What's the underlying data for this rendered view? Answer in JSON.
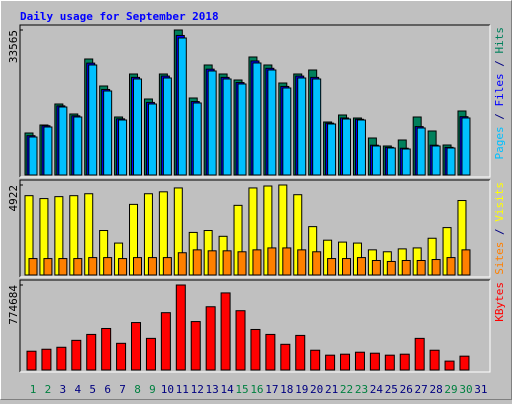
{
  "chart_data": {
    "type": "bar",
    "title": "Daily usage for September 2018",
    "categories": [
      "1",
      "2",
      "3",
      "4",
      "5",
      "6",
      "7",
      "8",
      "9",
      "10",
      "11",
      "12",
      "13",
      "14",
      "15",
      "16",
      "17",
      "18",
      "19",
      "20",
      "21",
      "22",
      "23",
      "24",
      "25",
      "26",
      "27",
      "28",
      "29",
      "30",
      "31"
    ],
    "category_colors": [
      "#008040",
      "#008040",
      "#000080",
      "#000080",
      "#000080",
      "#000080",
      "#000080",
      "#008040",
      "#008040",
      "#000080",
      "#000080",
      "#000080",
      "#000080",
      "#000080",
      "#008040",
      "#008040",
      "#000080",
      "#000080",
      "#000080",
      "#000080",
      "#000080",
      "#008040",
      "#008040",
      "#000080",
      "#000080",
      "#000080",
      "#000080",
      "#000080",
      "#008040",
      "#008040",
      "#000080"
    ],
    "legend_separator": " / ",
    "panels": [
      {
        "ylim": [
          0,
          33565
        ],
        "yticks": [
          33565
        ],
        "series": [
          {
            "name": "Pages",
            "color": "#00c0ff",
            "values": [
              8797,
              11112,
              15742,
              13427,
              25465,
              19446,
              12733,
              22224,
              16437,
              22456,
              31716,
              16668,
              24076,
              22224,
              21067,
              25928,
              24308,
              20141,
              22456,
              22224,
              11807,
              12964,
              12733,
              6714,
              6251,
              6019,
              10881,
              6714,
              6251,
              13196,
              null
            ]
          },
          {
            "name": "Files",
            "color": "#0000ff",
            "values": [
              9100,
              11400,
              16000,
              13700,
              25900,
              19800,
              13000,
              22600,
              16800,
              22900,
              32300,
              17000,
              24500,
              22600,
              21400,
              26400,
              24700,
              20500,
              22900,
              22600,
              12000,
              13200,
              12900,
              6900,
              6400,
              6200,
              11200,
              6900,
              6400,
              13500,
              null
            ]
          },
          {
            "name": "Hits",
            "color": "#00805c",
            "values": [
              9723,
              11575,
              16437,
              14122,
              26854,
              20604,
              13427,
              23382,
              17594,
              23382,
              33565,
              17826,
              25465,
              23382,
              21993,
              27317,
              25465,
              21298,
              23382,
              24308,
              12270,
              13890,
              13196,
              8566,
              6714,
              8103,
              13427,
              10186,
              6945,
              14816,
              null
            ]
          }
        ]
      },
      {
        "ylim": [
          0,
          4922
        ],
        "yticks": [
          4922
        ],
        "series": [
          {
            "name": "Sites",
            "color": "#ff8000",
            "values": [
              899,
              899,
              899,
              899,
              952,
              952,
              899,
              952,
              952,
              952,
              1217,
              1375,
              1323,
              1323,
              1270,
              1375,
              1481,
              1481,
              1375,
              1270,
              899,
              899,
              952,
              793,
              740,
              793,
              793,
              846,
              952,
              1375,
              null
            ]
          },
          {
            "name": "Visits",
            "color": "#ffff00",
            "values": [
              4338,
              4179,
              4285,
              4338,
              4444,
              2433,
              1746,
              3862,
              4444,
              4549,
              4761,
              2328,
              2433,
              2116,
              3809,
              4761,
              4867,
              4922,
              4391,
              2645,
              1904,
              1799,
              1746,
              1375,
              1270,
              1428,
              1481,
              2010,
              2592,
              4073,
              null
            ]
          }
        ]
      },
      {
        "ylim": [
          0,
          774684
        ],
        "yticks": [
          774684
        ],
        "series": [
          {
            "name": "KBytes",
            "color": "#ff0000",
            "values": [
              171152,
              189168,
              207184,
              270240,
              324288,
              378336,
              243216,
              432384,
              288256,
              522464,
              774684,
              441392,
              576512,
              702624,
              540480,
              369328,
              324288,
              234208,
              315280,
              180160,
              135120,
              144128,
              162144,
              153136,
              135120,
              144128,
              288256,
              180160,
              81072,
              126112,
              null
            ]
          }
        ]
      }
    ]
  }
}
